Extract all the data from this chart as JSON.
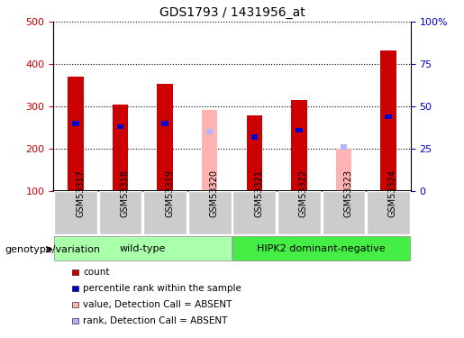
{
  "title": "GDS1793 / 1431956_at",
  "samples": [
    "GSM53317",
    "GSM53318",
    "GSM53319",
    "GSM53320",
    "GSM53321",
    "GSM53322",
    "GSM53323",
    "GSM53324"
  ],
  "count_values": [
    370,
    305,
    353,
    null,
    280,
    315,
    null,
    432
  ],
  "rank_values_pct": [
    40,
    38,
    40,
    null,
    32,
    36,
    null,
    44
  ],
  "absent_count_values": [
    null,
    null,
    null,
    292,
    null,
    null,
    200,
    null
  ],
  "absent_rank_values_pct": [
    null,
    null,
    null,
    35,
    null,
    null,
    26,
    null
  ],
  "ylim_left": [
    100,
    500
  ],
  "ylim_right": [
    0,
    100
  ],
  "yticks_left": [
    100,
    200,
    300,
    400,
    500
  ],
  "yticks_right": [
    0,
    25,
    50,
    75,
    100
  ],
  "yticklabels_right": [
    "0",
    "25",
    "50",
    "75",
    "100%"
  ],
  "bar_width": 0.35,
  "rank_bar_width": 0.15,
  "color_count": "#cc0000",
  "color_rank": "#0000cc",
  "color_absent_count": "#ffb3b3",
  "color_absent_rank": "#b3b3ff",
  "genotype_groups": [
    {
      "label": "wild-type",
      "samples_range": [
        0,
        3
      ],
      "color": "#aaffaa"
    },
    {
      "label": "HIPK2 dominant-negative",
      "samples_range": [
        4,
        7
      ],
      "color": "#44ee44"
    }
  ],
  "legend_items": [
    {
      "label": "count",
      "color": "#cc0000"
    },
    {
      "label": "percentile rank within the sample",
      "color": "#0000cc"
    },
    {
      "label": "value, Detection Call = ABSENT",
      "color": "#ffb3b3"
    },
    {
      "label": "rank, Detection Call = ABSENT",
      "color": "#b3b3ff"
    }
  ],
  "genotype_label": "genotype/variation",
  "tick_label_color_left": "#cc0000",
  "tick_label_color_right": "#0000cc"
}
